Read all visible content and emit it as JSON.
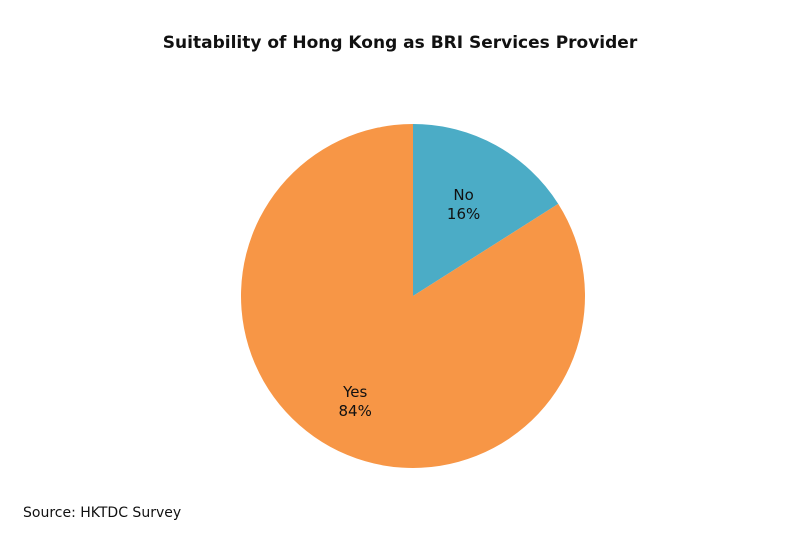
{
  "chart_data": {
    "type": "pie",
    "title": "Suitability of Hong Kong as BRI Services Provider",
    "slices": [
      {
        "name": "No",
        "value": 16,
        "label": "16%",
        "color": "#4BACC6"
      },
      {
        "name": "Yes",
        "value": 84,
        "label": "84%",
        "color": "#F79646"
      }
    ],
    "start_angle_deg": 0,
    "direction": "clockwise"
  },
  "source": "Source: HKTDC Survey"
}
